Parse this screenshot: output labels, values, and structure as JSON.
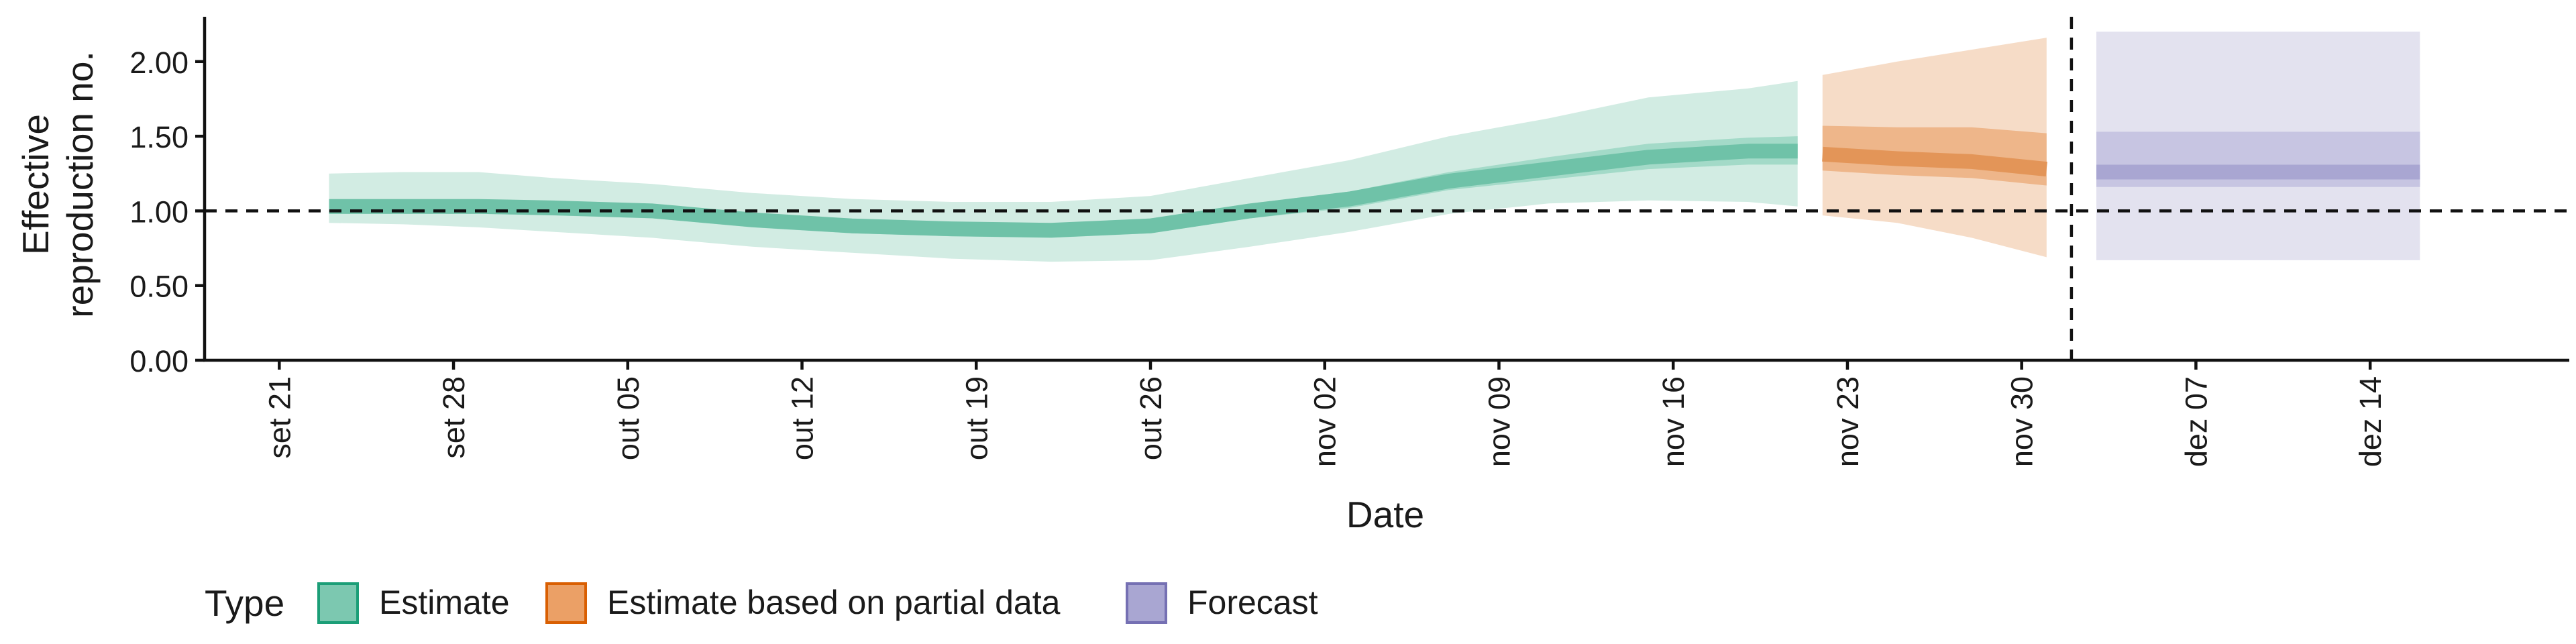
{
  "chart_data": {
    "type": "area",
    "xlabel": "Date",
    "ylabel_lines": [
      "Effective",
      "reproduction no."
    ],
    "yticks": [
      "0.00",
      "0.50",
      "1.00",
      "1.50",
      "2.00"
    ],
    "ylim": [
      0,
      2.3
    ],
    "xlim": [
      "2020-09-18",
      "2020-12-22"
    ],
    "xticks": [
      {
        "date": "2020-09-21",
        "label": "set 21"
      },
      {
        "date": "2020-09-28",
        "label": "set 28"
      },
      {
        "date": "2020-10-05",
        "label": "out 05"
      },
      {
        "date": "2020-10-12",
        "label": "out 12"
      },
      {
        "date": "2020-10-19",
        "label": "out 19"
      },
      {
        "date": "2020-10-26",
        "label": "out 26"
      },
      {
        "date": "2020-11-02",
        "label": "nov 02"
      },
      {
        "date": "2020-11-09",
        "label": "nov 09"
      },
      {
        "date": "2020-11-16",
        "label": "nov 16"
      },
      {
        "date": "2020-11-23",
        "label": "nov 23"
      },
      {
        "date": "2020-11-30",
        "label": "nov 30"
      },
      {
        "date": "2020-12-07",
        "label": "dez 07"
      },
      {
        "date": "2020-12-14",
        "label": "dez 14"
      }
    ],
    "reference_hline": 1.0,
    "reference_vline": "2020-12-02",
    "legend": {
      "title": "Type",
      "position": "bottom-left",
      "items": [
        {
          "label": "Estimate",
          "fill": "#7cc8b0",
          "stroke": "#1b9e77"
        },
        {
          "label": "Estimate based on partial data",
          "fill": "#eba066",
          "stroke": "#d95f02"
        },
        {
          "label": "Forecast",
          "fill": "#a9a6d2",
          "stroke": "#7570b3"
        }
      ]
    },
    "series": [
      {
        "type": "Estimate",
        "colors": {
          "outer": "#d2ece3",
          "mid": "#a3dac8",
          "median": "#6fc2a8"
        },
        "points": [
          {
            "x": "2020-09-23",
            "m": 1.03,
            "l50": 0.98,
            "u50": 1.07,
            "l90": 0.92,
            "u90": 1.25
          },
          {
            "x": "2020-09-26",
            "m": 1.03,
            "l50": 0.98,
            "u50": 1.07,
            "l90": 0.91,
            "u90": 1.26
          },
          {
            "x": "2020-09-29",
            "m": 1.03,
            "l50": 0.98,
            "u50": 1.07,
            "l90": 0.89,
            "u90": 1.26
          },
          {
            "x": "2020-10-02",
            "m": 1.02,
            "l50": 0.97,
            "u50": 1.06,
            "l90": 0.86,
            "u90": 1.22
          },
          {
            "x": "2020-10-06",
            "m": 1.0,
            "l50": 0.95,
            "u50": 1.04,
            "l90": 0.82,
            "u90": 1.18
          },
          {
            "x": "2020-10-10",
            "m": 0.94,
            "l50": 0.89,
            "u50": 0.98,
            "l90": 0.76,
            "u90": 1.12
          },
          {
            "x": "2020-10-14",
            "m": 0.9,
            "l50": 0.85,
            "u50": 0.94,
            "l90": 0.72,
            "u90": 1.08
          },
          {
            "x": "2020-10-18",
            "m": 0.88,
            "l50": 0.83,
            "u50": 0.92,
            "l90": 0.68,
            "u90": 1.06
          },
          {
            "x": "2020-10-22",
            "m": 0.87,
            "l50": 0.82,
            "u50": 0.91,
            "l90": 0.66,
            "u90": 1.06
          },
          {
            "x": "2020-10-26",
            "m": 0.9,
            "l50": 0.85,
            "u50": 0.95,
            "l90": 0.67,
            "u90": 1.1
          },
          {
            "x": "2020-10-30",
            "m": 1.0,
            "l50": 0.95,
            "u50": 1.05,
            "l90": 0.76,
            "u90": 1.22
          },
          {
            "x": "2020-11-03",
            "m": 1.08,
            "l50": 1.02,
            "u50": 1.13,
            "l90": 0.86,
            "u90": 1.34
          },
          {
            "x": "2020-11-07",
            "m": 1.2,
            "l50": 1.14,
            "u50": 1.26,
            "l90": 0.98,
            "u90": 1.5
          },
          {
            "x": "2020-11-11",
            "m": 1.28,
            "l50": 1.21,
            "u50": 1.36,
            "l90": 1.05,
            "u90": 1.62
          },
          {
            "x": "2020-11-15",
            "m": 1.36,
            "l50": 1.28,
            "u50": 1.45,
            "l90": 1.07,
            "u90": 1.76
          },
          {
            "x": "2020-11-19",
            "m": 1.4,
            "l50": 1.31,
            "u50": 1.49,
            "l90": 1.06,
            "u90": 1.82
          },
          {
            "x": "2020-11-21",
            "m": 1.4,
            "l50": 1.31,
            "u50": 1.5,
            "l90": 1.03,
            "u90": 1.87
          }
        ]
      },
      {
        "type": "Estimate based on partial data",
        "colors": {
          "outer": "#f6dcc7",
          "mid": "#eeb68a",
          "median": "#e39558"
        },
        "points": [
          {
            "x": "2020-11-22",
            "m": 1.38,
            "l50": 1.27,
            "u50": 1.57,
            "l90": 0.97,
            "u90": 1.91
          },
          {
            "x": "2020-11-25",
            "m": 1.35,
            "l50": 1.24,
            "u50": 1.56,
            "l90": 0.92,
            "u90": 2.0
          },
          {
            "x": "2020-11-28",
            "m": 1.33,
            "l50": 1.22,
            "u50": 1.56,
            "l90": 0.82,
            "u90": 2.08
          },
          {
            "x": "2020-12-01",
            "m": 1.28,
            "l50": 1.17,
            "u50": 1.52,
            "l90": 0.69,
            "u90": 2.16
          }
        ]
      },
      {
        "type": "Forecast",
        "colors": {
          "outer": "#e3e2ef",
          "mid": "#c7c5e2",
          "median": "#a9a6d2"
        },
        "points": [
          {
            "x": "2020-12-03",
            "m": 1.26,
            "l50": 1.16,
            "u50": 1.53,
            "l90": 0.67,
            "u90": 2.2
          },
          {
            "x": "2020-12-16",
            "m": 1.26,
            "l50": 1.16,
            "u50": 1.53,
            "l90": 0.67,
            "u90": 2.2
          }
        ]
      }
    ]
  }
}
